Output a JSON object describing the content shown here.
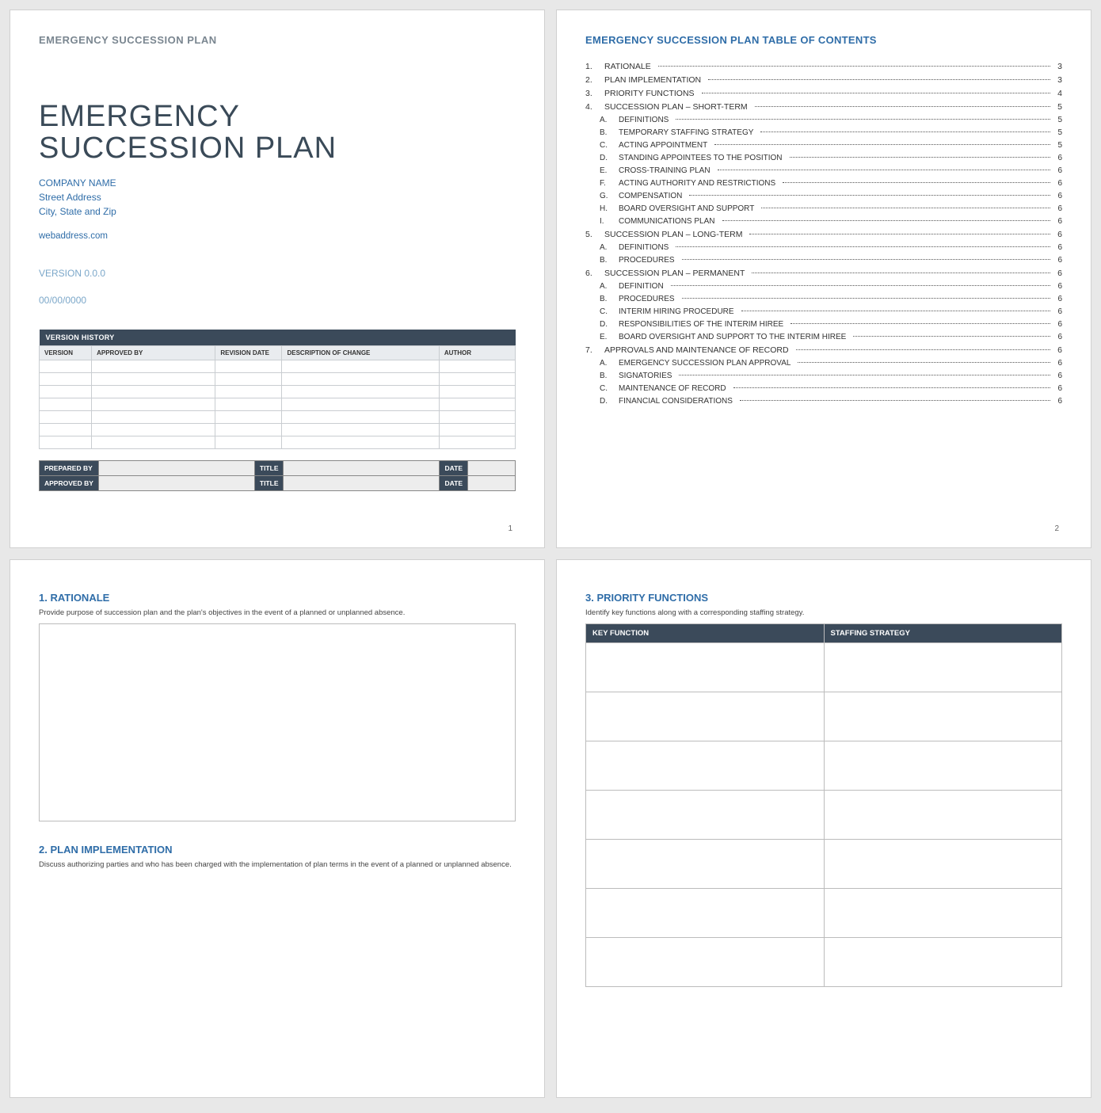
{
  "page1": {
    "header": "EMERGENCY SUCCESSION PLAN",
    "title_line1": "EMERGENCY",
    "title_line2": "SUCCESSION PLAN",
    "company": "COMPANY NAME",
    "street": "Street Address",
    "city": "City, State and Zip",
    "web": "webaddress.com",
    "version": "VERSION 0.0.0",
    "date": "00/00/0000",
    "vh_title": "VERSION HISTORY",
    "vh_cols": [
      "VERSION",
      "APPROVED BY",
      "REVISION DATE",
      "DESCRIPTION OF CHANGE",
      "AUTHOR"
    ],
    "vh_row_count": 7,
    "vh_col_widths_pct": [
      11,
      26,
      14,
      33,
      16
    ],
    "sig": {
      "prepared": "PREPARED BY",
      "approved": "APPROVED BY",
      "title": "TITLE",
      "date": "DATE"
    },
    "page_num": "1"
  },
  "page2": {
    "title": "EMERGENCY SUCCESSION PLAN TABLE OF CONTENTS",
    "toc": [
      {
        "n": "1.",
        "t": "RATIONALE",
        "p": "3",
        "sub": false
      },
      {
        "n": "2.",
        "t": "PLAN IMPLEMENTATION",
        "p": "3",
        "sub": false
      },
      {
        "n": "3.",
        "t": "PRIORITY FUNCTIONS",
        "p": "4",
        "sub": false
      },
      {
        "n": "4.",
        "t": "SUCCESSION PLAN – SHORT-TERM",
        "p": "5",
        "sub": false
      },
      {
        "n": "A.",
        "t": "DEFINITIONS",
        "p": "5",
        "sub": true
      },
      {
        "n": "B.",
        "t": "TEMPORARY STAFFING STRATEGY",
        "p": "5",
        "sub": true
      },
      {
        "n": "C.",
        "t": "ACTING APPOINTMENT",
        "p": "5",
        "sub": true
      },
      {
        "n": "D.",
        "t": "STANDING APPOINTEES TO THE POSITION",
        "p": "6",
        "sub": true
      },
      {
        "n": "E.",
        "t": "CROSS-TRAINING PLAN",
        "p": "6",
        "sub": true
      },
      {
        "n": "F.",
        "t": "ACTING AUTHORITY AND RESTRICTIONS",
        "p": "6",
        "sub": true
      },
      {
        "n": "G.",
        "t": "COMPENSATION",
        "p": "6",
        "sub": true
      },
      {
        "n": "H.",
        "t": "BOARD OVERSIGHT AND SUPPORT",
        "p": "6",
        "sub": true
      },
      {
        "n": "I.",
        "t": "COMMUNICATIONS PLAN",
        "p": "6",
        "sub": true
      },
      {
        "n": "5.",
        "t": "SUCCESSION PLAN – LONG-TERM",
        "p": "6",
        "sub": false
      },
      {
        "n": "A.",
        "t": "DEFINITIONS",
        "p": "6",
        "sub": true
      },
      {
        "n": "B.",
        "t": "PROCEDURES",
        "p": "6",
        "sub": true
      },
      {
        "n": "6.",
        "t": "SUCCESSION PLAN – PERMANENT",
        "p": "6",
        "sub": false
      },
      {
        "n": "A.",
        "t": "DEFINITION",
        "p": "6",
        "sub": true
      },
      {
        "n": "B.",
        "t": "PROCEDURES",
        "p": "6",
        "sub": true
      },
      {
        "n": "C.",
        "t": "INTERIM HIRING PROCEDURE",
        "p": "6",
        "sub": true
      },
      {
        "n": "D.",
        "t": "RESPONSIBILITIES OF THE INTERIM HIREE",
        "p": "6",
        "sub": true
      },
      {
        "n": "E.",
        "t": "BOARD OVERSIGHT AND SUPPORT TO THE INTERIM HIREE",
        "p": "6",
        "sub": true
      },
      {
        "n": "7.",
        "t": "APPROVALS AND MAINTENANCE OF RECORD",
        "p": "6",
        "sub": false
      },
      {
        "n": "A.",
        "t": "EMERGENCY SUCCESSION PLAN APPROVAL",
        "p": "6",
        "sub": true
      },
      {
        "n": "B.",
        "t": "SIGNATORIES",
        "p": "6",
        "sub": true
      },
      {
        "n": "C.",
        "t": "MAINTENANCE OF RECORD",
        "p": "6",
        "sub": true
      },
      {
        "n": "D.",
        "t": "FINANCIAL CONSIDERATIONS",
        "p": "6",
        "sub": true
      }
    ],
    "page_num": "2"
  },
  "page3": {
    "s1_head": "1.  RATIONALE",
    "s1_desc": "Provide purpose of succession plan and the plan's objectives in the event of a planned or unplanned absence.",
    "s2_head": "2.  PLAN IMPLEMENTATION",
    "s2_desc": "Discuss authorizing parties and who has been charged with the implementation of plan terms in the event of a planned or unplanned absence."
  },
  "page4": {
    "s3_head": "3.  PRIORITY FUNCTIONS",
    "s3_desc": "Identify key functions along with a corresponding staffing strategy.",
    "cols": [
      "KEY FUNCTION",
      "STAFFING STRATEGY"
    ],
    "row_count": 7,
    "col_widths_pct": [
      50,
      50
    ]
  },
  "colors": {
    "header_bar": "#3b4a5a",
    "accent_blue": "#2f6da8",
    "muted_gray": "#7a8690",
    "light_blue": "#7ba7c9",
    "cell_gray": "#ededed",
    "border": "#bcbcbc",
    "page_bg": "#ffffff",
    "body_bg": "#e8e8e8"
  }
}
